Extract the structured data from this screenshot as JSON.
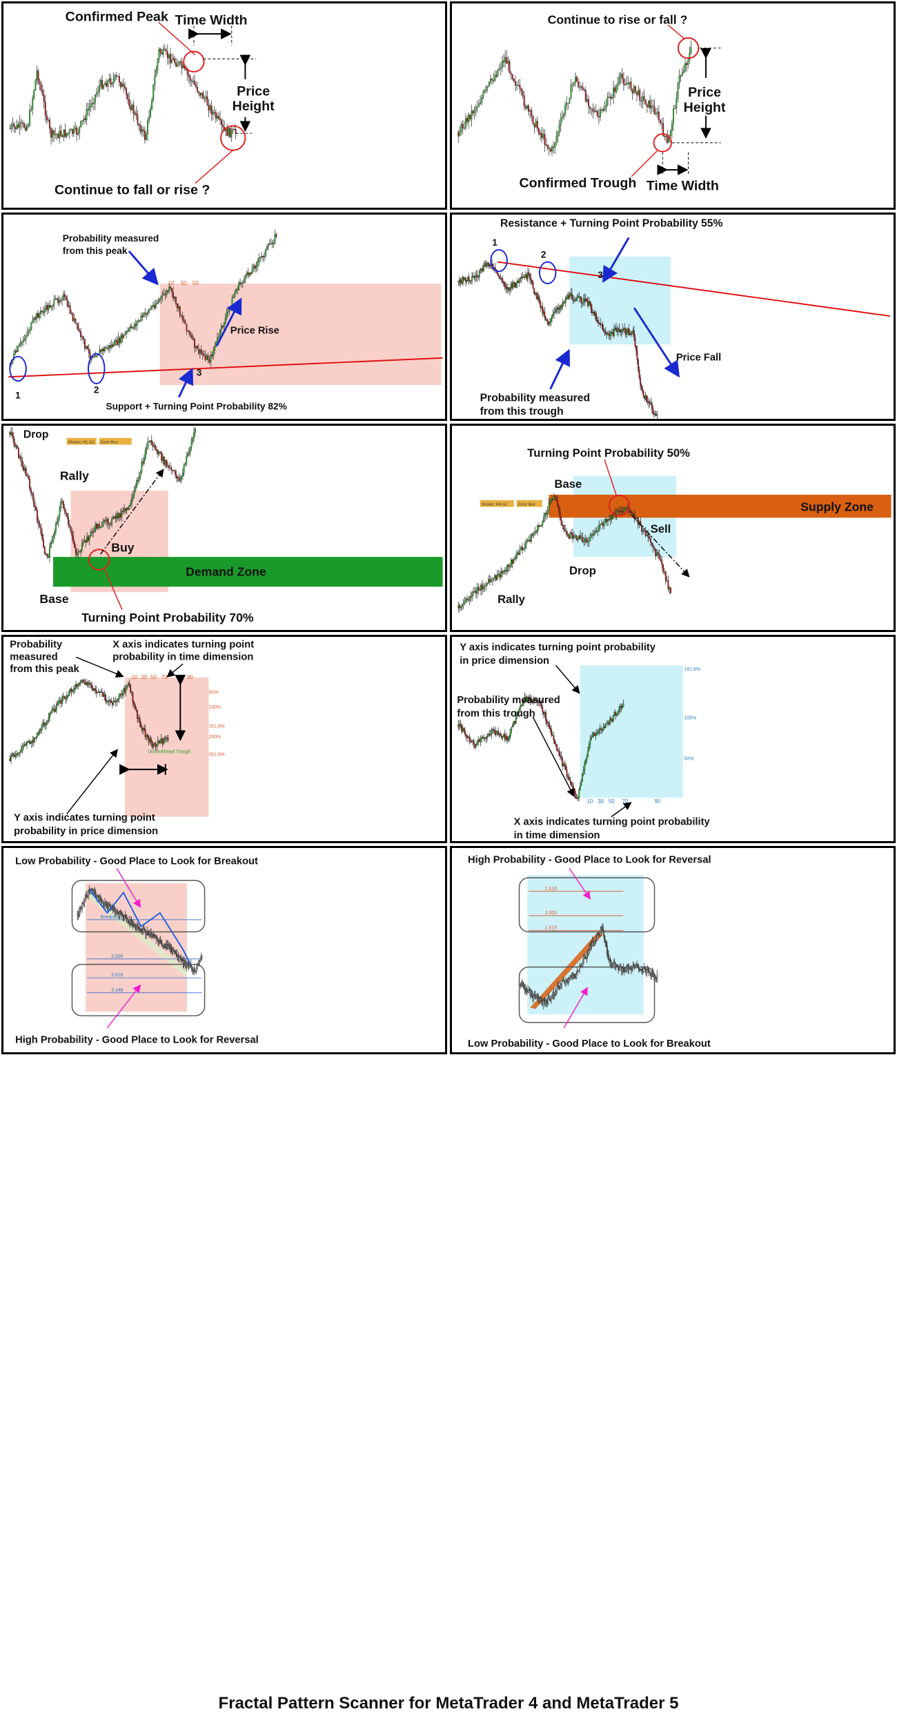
{
  "panels": [
    {
      "id": "p1",
      "labels": {
        "peak": "Confirmed Peak",
        "tw": "Time Width",
        "ph1": "Price",
        "ph2": "Height",
        "cont": "Continue to fall or rise ?"
      }
    },
    {
      "id": "p2",
      "labels": {
        "cont": "Continue to rise or fall ?",
        "ph1": "Price",
        "ph2": "Height",
        "trough": "Confirmed Trough",
        "tw": "Time Width"
      }
    },
    {
      "id": "p3",
      "labels": {
        "m1": "Probability measured",
        "m2": "from this peak",
        "rise": "Price Rise",
        "n1": "1",
        "n2": "2",
        "n3": "3",
        "sup": "Support + Turning Point Probability 82%"
      }
    },
    {
      "id": "p4",
      "labels": {
        "res": "Resistance + Turning Point Probability 55%",
        "n1": "1",
        "n2": "2",
        "n3": "3",
        "fall": "Price Fall",
        "m1": "Probability measured",
        "m2": "from this trough"
      }
    },
    {
      "id": "p5",
      "labels": {
        "drop": "Drop",
        "rally": "Rally",
        "buy": "Buy",
        "zone": "Demand Zone",
        "base": "Base",
        "tpp": "Turning Point Probability 70%",
        "btn1": "Shown: H1-S2",
        "btn2": "Zone Box"
      }
    },
    {
      "id": "p6",
      "labels": {
        "tpp": "Turning Point Probability 50%",
        "base": "Base",
        "zone": "Supply Zone",
        "sell": "Sell",
        "drop": "Drop",
        "rally": "Rally",
        "btn1": "Shown: H4-S1",
        "btn2": "Zone Box"
      }
    },
    {
      "id": "p7",
      "labels": {
        "m1": "Probability",
        "m2": "measured",
        "m3": "from this peak",
        "x1": "X axis indicates turning point",
        "x2": "probability in time dimension",
        "y1": "Y axis indicates turning point",
        "y2": "probability in price dimension",
        "unconf": "Unconfirmed Trough"
      }
    },
    {
      "id": "p8",
      "labels": {
        "y1": "Y axis indicates turning point probability",
        "y2": "in price dimension",
        "m1": "Probability measured",
        "m2": "from this trough",
        "x1": "X axis indicates turning point probability",
        "x2": "in time dimension"
      }
    },
    {
      "id": "p9",
      "labels": {
        "top": "Low Probability - Good Place to Look for Breakout",
        "bottom": "High Probability - Good Place to Look for Reversal",
        "breakout": "Breakout"
      }
    },
    {
      "id": "p10",
      "labels": {
        "top": "High Probability - Good Place to Look for Reversal",
        "bottom": "Low Probability - Good Place to Look for Breakout"
      }
    }
  ],
  "colors": {
    "bull": "#22aa22",
    "bear": "#aa1111",
    "probRed": "#f8c8c0",
    "probBlue": "#c8f0f8",
    "demand": "#1a9a2a",
    "supply": "#d86010",
    "trend": "#e01010",
    "arrow": "#1a2ad0"
  },
  "footer": "Fractal Pattern Scanner for MetaTrader 4 and MetaTrader 5",
  "ticks": {
    "time": [
      "10",
      "30",
      "50",
      "70",
      "90"
    ],
    "price": [
      "50%",
      "100%",
      "161.8%",
      "200%",
      "261.8%"
    ],
    "p9levels": [
      "2.000",
      "2.618",
      "3.148"
    ],
    "p10levels": [
      "2.618",
      "2.000",
      "1.618"
    ]
  }
}
